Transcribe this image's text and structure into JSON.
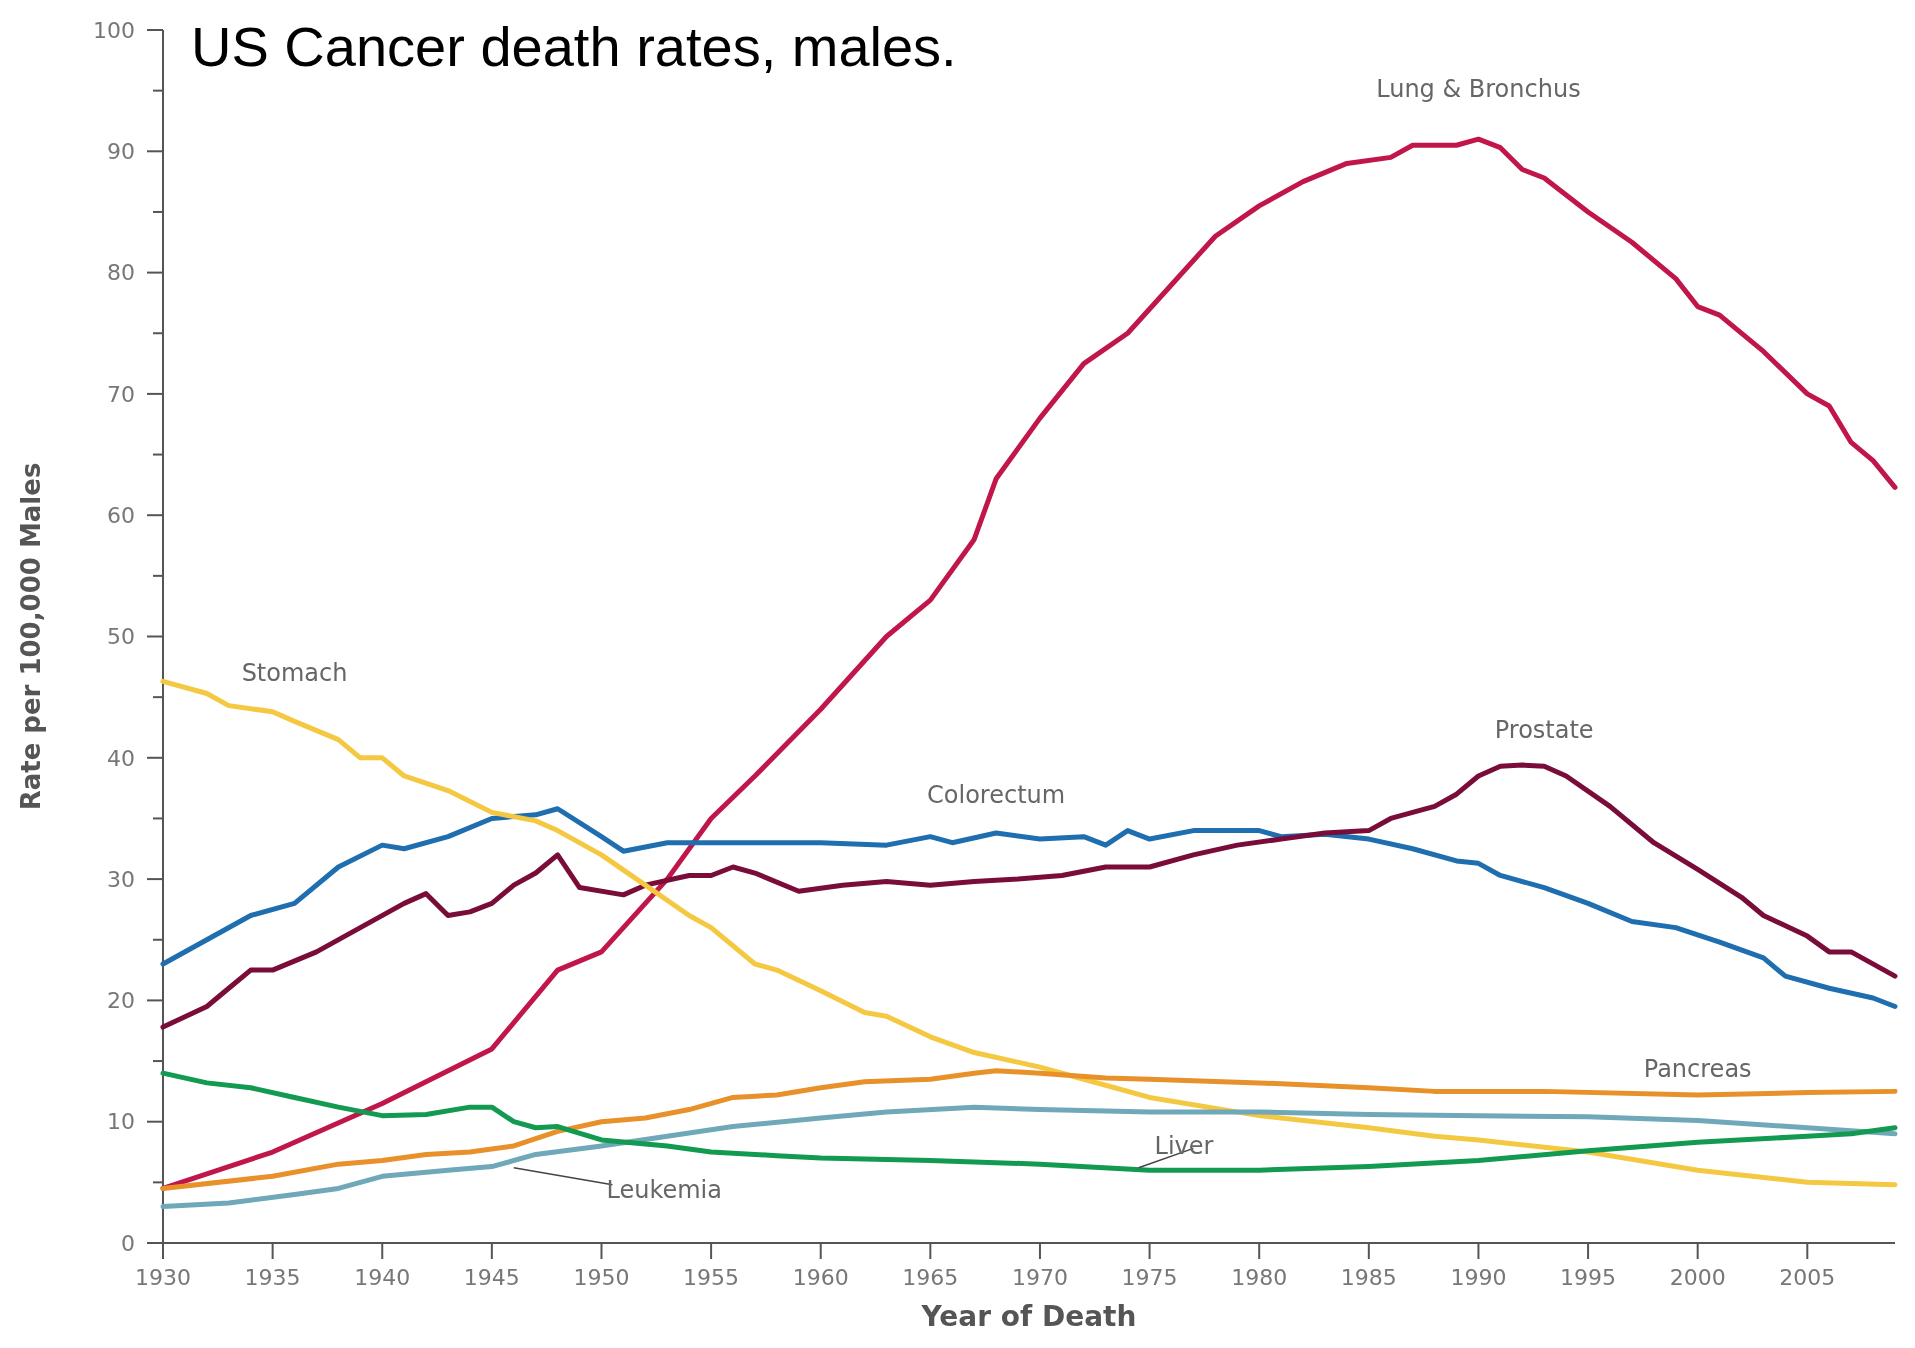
{
  "chart_data": {
    "type": "line",
    "title": "US Cancer death rates, males.",
    "xlabel": "Year of Death",
    "ylabel": "Rate per 100,000 Males",
    "xlim": [
      1930,
      2009
    ],
    "xticks": [
      1930,
      1935,
      1940,
      1945,
      1950,
      1955,
      1960,
      1965,
      1970,
      1975,
      1980,
      1985,
      1990,
      1995,
      2000,
      2005
    ],
    "ylim": [
      0,
      100
    ],
    "yticks": [
      0,
      {
        "value": 5,
        "label": null
      },
      10,
      {
        "value": 15,
        "label": null
      },
      20,
      {
        "value": 25,
        "label": null
      },
      30,
      {
        "value": 35,
        "label": null
      },
      40,
      {
        "value": 45,
        "label": null
      },
      50,
      {
        "value": 55,
        "label": null
      },
      60,
      {
        "value": 65,
        "label": null
      },
      70,
      {
        "value": 75,
        "label": null
      },
      80,
      {
        "value": 85,
        "label": null
      },
      90,
      {
        "value": 95,
        "label": null
      },
      100
    ],
    "grid": false,
    "series": [
      {
        "name": "Lung & Bronchus",
        "color": "#c0164a",
        "x": [
          1930,
          1935,
          1940,
          1945,
          1948,
          1950,
          1953,
          1955,
          1957,
          1960,
          1963,
          1965,
          1967,
          1968,
          1970,
          1972,
          1974,
          1976,
          1978,
          1980,
          1982,
          1984,
          1986,
          1987,
          1989,
          1990,
          1991,
          1992,
          1993,
          1995,
          1997,
          1999,
          2000,
          2001,
          2003,
          2005,
          2006,
          2007,
          2008,
          2009
        ],
        "values": [
          4.5,
          7.5,
          11.5,
          16,
          22.5,
          24,
          30,
          35,
          38.5,
          44,
          50,
          53,
          58,
          63,
          68,
          72.5,
          75,
          79,
          83,
          85.5,
          87.5,
          89,
          89.5,
          90.5,
          90.5,
          91,
          90.3,
          88.5,
          87.8,
          85,
          82.5,
          79.5,
          77.2,
          76.5,
          73.5,
          70,
          69,
          66,
          64.5,
          62.3
        ]
      },
      {
        "name": "Colorectum",
        "color": "#1f6eb0",
        "x": [
          1930,
          1932,
          1934,
          1936,
          1938,
          1940,
          1941,
          1943,
          1945,
          1947,
          1948,
          1950,
          1951,
          1953,
          1955,
          1957,
          1960,
          1963,
          1965,
          1966,
          1968,
          1970,
          1972,
          1973,
          1974,
          1975,
          1977,
          1980,
          1981,
          1983,
          1985,
          1987,
          1989,
          1990,
          1991,
          1993,
          1995,
          1997,
          1999,
          2001,
          2003,
          2004,
          2006,
          2008,
          2009
        ],
        "values": [
          23,
          25,
          27,
          28,
          31,
          32.8,
          32.5,
          33.5,
          35,
          35.3,
          35.8,
          33.5,
          32.3,
          33,
          33,
          33,
          33,
          32.8,
          33.5,
          33,
          33.8,
          33.3,
          33.5,
          32.8,
          34,
          33.3,
          34,
          34,
          33.5,
          33.7,
          33.3,
          32.5,
          31.5,
          31.3,
          30.3,
          29.3,
          28,
          26.5,
          26,
          24.8,
          23.5,
          22,
          21,
          20.2,
          19.5
        ]
      },
      {
        "name": "Prostate",
        "color": "#7a0c3a",
        "x": [
          1930,
          1932,
          1933,
          1934,
          1935,
          1937,
          1939,
          1941,
          1942,
          1943,
          1944,
          1945,
          1946,
          1947,
          1948,
          1949,
          1951,
          1952,
          1954,
          1955,
          1956,
          1957,
          1959,
          1961,
          1963,
          1965,
          1967,
          1969,
          1971,
          1973,
          1975,
          1977,
          1979,
          1981,
          1983,
          1985,
          1986,
          1988,
          1989,
          1990,
          1991,
          1992,
          1993,
          1994,
          1996,
          1998,
          2000,
          2002,
          2003,
          2005,
          2006,
          2007,
          2009
        ],
        "values": [
          17.8,
          19.5,
          21,
          22.5,
          22.5,
          24,
          26,
          28,
          28.8,
          27,
          27.3,
          28,
          29.5,
          30.5,
          32,
          29.3,
          28.7,
          29.5,
          30.3,
          30.3,
          31,
          30.5,
          29,
          29.5,
          29.8,
          29.5,
          29.8,
          30,
          30.3,
          31,
          31,
          32,
          32.8,
          33.3,
          33.8,
          34,
          35,
          36,
          37,
          38.5,
          39.3,
          39.4,
          39.3,
          38.5,
          36,
          33,
          30.8,
          28.5,
          27,
          25.3,
          24,
          24,
          22
        ]
      },
      {
        "name": "Stomach",
        "color": "#f5c842",
        "x": [
          1930,
          1932,
          1933,
          1935,
          1936,
          1938,
          1939,
          1940,
          1941,
          1943,
          1945,
          1947,
          1948,
          1950,
          1952,
          1954,
          1955,
          1957,
          1958,
          1960,
          1962,
          1963,
          1965,
          1967,
          1970,
          1972,
          1975,
          1980,
          1985,
          1988,
          1990,
          1995,
          2000,
          2005,
          2009
        ],
        "values": [
          46.3,
          45.3,
          44.3,
          43.8,
          43,
          41.5,
          40,
          40,
          38.5,
          37.3,
          35.5,
          34.8,
          34,
          32,
          29.5,
          27,
          26,
          23,
          22.5,
          20.8,
          19,
          18.7,
          17,
          15.7,
          14.5,
          13.5,
          12,
          10.5,
          9.5,
          8.8,
          8.5,
          7.5,
          6,
          5,
          4.8
        ]
      },
      {
        "name": "Pancreas",
        "color": "#e8912a",
        "x": [
          1930,
          1935,
          1938,
          1940,
          1942,
          1944,
          1946,
          1948,
          1950,
          1952,
          1954,
          1956,
          1958,
          1960,
          1962,
          1965,
          1967,
          1968,
          1970,
          1973,
          1975,
          1980,
          1985,
          1988,
          1993,
          2000,
          2005,
          2009
        ],
        "values": [
          4.5,
          5.5,
          6.5,
          6.8,
          7.3,
          7.5,
          8,
          9.2,
          10,
          10.3,
          11,
          12,
          12.2,
          12.8,
          13.3,
          13.5,
          14,
          14.2,
          14,
          13.6,
          13.5,
          13.2,
          12.8,
          12.5,
          12.5,
          12.2,
          12.4,
          12.5
        ]
      },
      {
        "name": "Leukemia",
        "color": "#6fa8b8",
        "x": [
          1930,
          1933,
          1936,
          1938,
          1940,
          1943,
          1945,
          1947,
          1950,
          1953,
          1956,
          1960,
          1963,
          1967,
          1970,
          1975,
          1980,
          1985,
          1990,
          1995,
          2000,
          2005,
          2009
        ],
        "values": [
          3,
          3.3,
          4,
          4.5,
          5.5,
          6,
          6.3,
          7.3,
          8,
          8.8,
          9.6,
          10.3,
          10.8,
          11.2,
          11,
          10.8,
          10.8,
          10.6,
          10.5,
          10.4,
          10.1,
          9.5,
          9
        ]
      },
      {
        "name": "Liver",
        "color": "#119a50",
        "x": [
          1930,
          1932,
          1934,
          1936,
          1938,
          1940,
          1942,
          1944,
          1945,
          1946,
          1947,
          1948,
          1950,
          1953,
          1955,
          1958,
          1960,
          1965,
          1970,
          1975,
          1980,
          1985,
          1990,
          1995,
          2000,
          2005,
          2007,
          2009
        ],
        "values": [
          14,
          13.2,
          12.8,
          12,
          11.2,
          10.5,
          10.6,
          11.2,
          11.2,
          10,
          9.5,
          9.6,
          8.5,
          8,
          7.5,
          7.2,
          7,
          6.8,
          6.5,
          6,
          6,
          6.3,
          6.8,
          7.6,
          8.3,
          8.8,
          9,
          9.5
        ]
      }
    ]
  }
}
